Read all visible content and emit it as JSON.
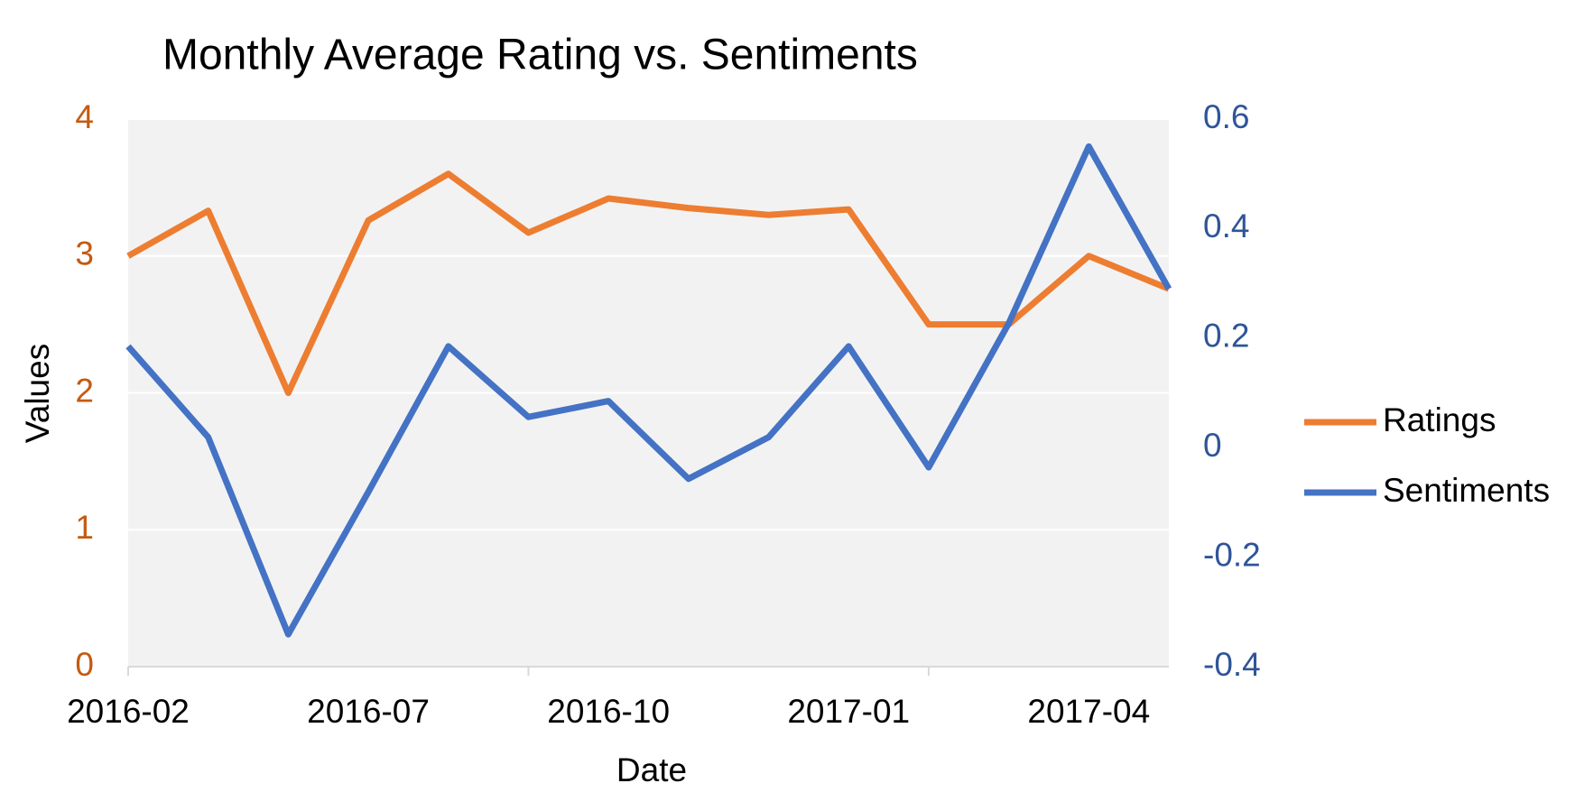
{
  "chart_data": {
    "type": "line",
    "title": "Monthly Average Rating vs. Sentiments",
    "xlabel": "Date",
    "ylabel": "Values",
    "categories": [
      "2016-02",
      null,
      null,
      "2016-07",
      null,
      null,
      "2016-10",
      null,
      null,
      "2017-01",
      null,
      null,
      "2017-04",
      null
    ],
    "series": [
      {
        "name": "Ratings",
        "color": "#ed7d31",
        "values": [
          3.0,
          3.33,
          2.0,
          3.26,
          3.6,
          3.17,
          3.42,
          3.35,
          3.3,
          3.34,
          2.5,
          2.5,
          3.0,
          2.76
        ]
      },
      {
        "name": "Sentiments",
        "color": "#4472c4",
        "axis": "y2",
        "values": [
          0.185,
          0.019,
          -0.341,
          -0.081,
          0.185,
          0.056,
          0.085,
          -0.057,
          0.019,
          0.185,
          -0.036,
          0.227,
          0.55,
          0.29
        ]
      }
    ],
    "ylim": [
      0,
      4
    ],
    "yticks": [
      0,
      1,
      2,
      3,
      4
    ],
    "ytick_color": "#c55a11",
    "y2lim": [
      -0.4,
      0.6
    ],
    "y2ticks": [
      -0.4,
      -0.2,
      0,
      0.2,
      0.4,
      0.6
    ],
    "y2tick_color": "#2f5597",
    "grid": true,
    "legend": "right"
  }
}
